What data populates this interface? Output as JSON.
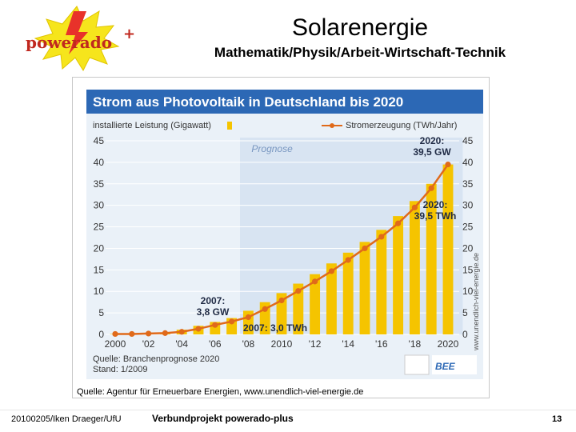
{
  "logo": {
    "text": "powerado",
    "plus": "+"
  },
  "header": {
    "title": "Solarenergie",
    "subtitle": "Mathematik/Physik/Arbeit-Wirtschaft-Technik"
  },
  "source_text": "Quelle: Agentur für Erneuerbare Energien, www.unendlich-viel-energie.de",
  "footer": {
    "left": "20100205/Iken Draeger/UfU",
    "center": "Verbundprojekt powerado-plus",
    "page": "13"
  },
  "chart_data": {
    "type": "bar",
    "title": "Strom aus Photovoltaik in Deutschland bis 2020",
    "legend_left": "installierte Leistung (Gigawatt)",
    "legend_right": "Stromerzeugung (TWh/Jahr)",
    "forecast_label": "Prognose",
    "ylim": [
      0,
      45
    ],
    "y_ticks": [
      0,
      5,
      10,
      15,
      20,
      25,
      30,
      35,
      40,
      45
    ],
    "years": [
      2000,
      2001,
      2002,
      2003,
      2004,
      2005,
      2006,
      2007,
      2008,
      2009,
      2010,
      2011,
      2012,
      2013,
      2014,
      2015,
      2016,
      2017,
      2018,
      2019,
      2020
    ],
    "x_tick_labels": [
      "2000",
      "'02",
      "'04",
      "'06",
      "'08",
      "2010",
      "'12",
      "'14",
      "'16",
      "'18",
      "2020"
    ],
    "series": [
      {
        "name": "installierte Leistung (Gigawatt)",
        "color": "#f5c400",
        "values": [
          0.1,
          0.2,
          0.3,
          0.4,
          1.1,
          2.0,
          2.9,
          3.8,
          5.5,
          7.5,
          9.6,
          11.8,
          14.0,
          16.5,
          19.0,
          21.5,
          24.3,
          27.5,
          31.0,
          35.0,
          39.5
        ]
      },
      {
        "name": "Stromerzeugung (TWh/Jahr)",
        "color": "#e06a1a",
        "values": [
          0.1,
          0.1,
          0.2,
          0.3,
          0.6,
          1.3,
          2.2,
          3.0,
          4.0,
          5.9,
          7.9,
          10.1,
          12.3,
          14.7,
          17.3,
          20.0,
          22.7,
          25.8,
          29.5,
          34.0,
          39.5
        ]
      }
    ],
    "annotations": {
      "a2007_gw_line1": "2007:",
      "a2007_gw_line2": "3,8 GW",
      "a2007_twh": "2007: 3,0 TWh",
      "a2020_gw_line1": "2020:",
      "a2020_gw_line2": "39,5 GW",
      "a2020_twh_line1": "2020:",
      "a2020_twh_line2": "39,5 TWh"
    },
    "source_line1": "Quelle: Branchenprognose 2020",
    "source_line2": "Stand: 1/2009",
    "side_text": "www.unendlich-viel-energie.de",
    "bee_label": "BEE"
  }
}
